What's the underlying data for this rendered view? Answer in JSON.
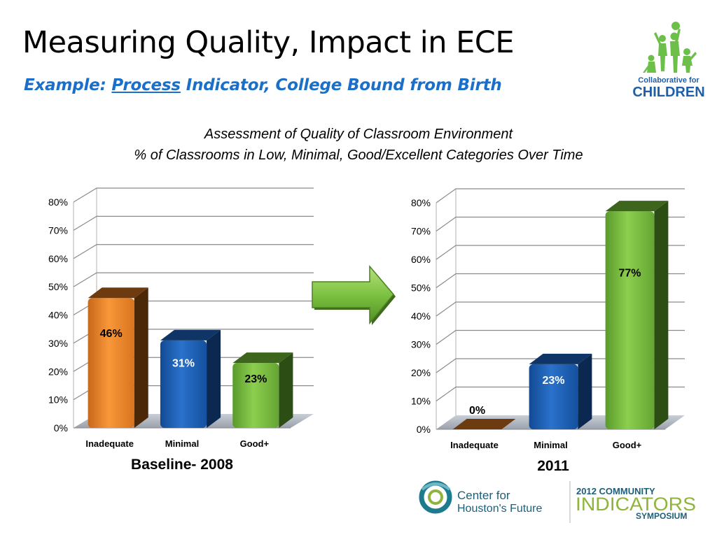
{
  "slide": {
    "title": "Measuring Quality, Impact in ECE",
    "subtitle_prefix": "Example: ",
    "subtitle_underlined": "Process",
    "subtitle_suffix": " Indicator, College Bound from Birth",
    "chart_heading_line1": "Assessment of Quality of Classroom Environment",
    "chart_heading_line2": "% of Classrooms in Low, Minimal, Good/Excellent Categories Over Time"
  },
  "colors": {
    "title": "#000000",
    "subtitle": "#1b6fc9",
    "inadequate": "#f28a2e",
    "minimal": "#1b5fb8",
    "good": "#7dc242",
    "arrow": "#7dc242",
    "logo_green": "#6cc04a",
    "logo_blue": "#1f5fa8",
    "logo_teal": "#1c7b8f",
    "logo_olive": "#8fb33b"
  },
  "logos": {
    "collaborative": {
      "line1": "Collaborative for",
      "line2": "CHILDREN"
    },
    "center": {
      "line1": "Center for",
      "line2": "Houston's Future"
    },
    "symposium": {
      "line1": "2012 COMMUNITY",
      "line2": "INDICATORS",
      "line3": "SYMPOSIUM"
    }
  },
  "chart_data": [
    {
      "type": "bar",
      "title": "",
      "caption": "Baseline- 2008",
      "categories": [
        "Inadequate",
        "Minimal",
        "Good+"
      ],
      "values": [
        46,
        31,
        23
      ],
      "value_labels": [
        "46%",
        "31%",
        "23%"
      ],
      "ylim": [
        0,
        80
      ],
      "yticks": [
        "0%",
        "10%",
        "20%",
        "30%",
        "40%",
        "50%",
        "60%",
        "70%",
        "80%"
      ],
      "grid": true,
      "style": "3d"
    },
    {
      "type": "bar",
      "title": "",
      "caption": "2011",
      "categories": [
        "Inadequate",
        "Minimal",
        "Good+"
      ],
      "values": [
        0,
        23,
        77
      ],
      "value_labels": [
        "0%",
        "23%",
        "77%"
      ],
      "ylim": [
        0,
        80
      ],
      "yticks": [
        "0%",
        "10%",
        "20%",
        "30%",
        "40%",
        "50%",
        "60%",
        "70%",
        "80%"
      ],
      "grid": true,
      "style": "3d"
    }
  ]
}
